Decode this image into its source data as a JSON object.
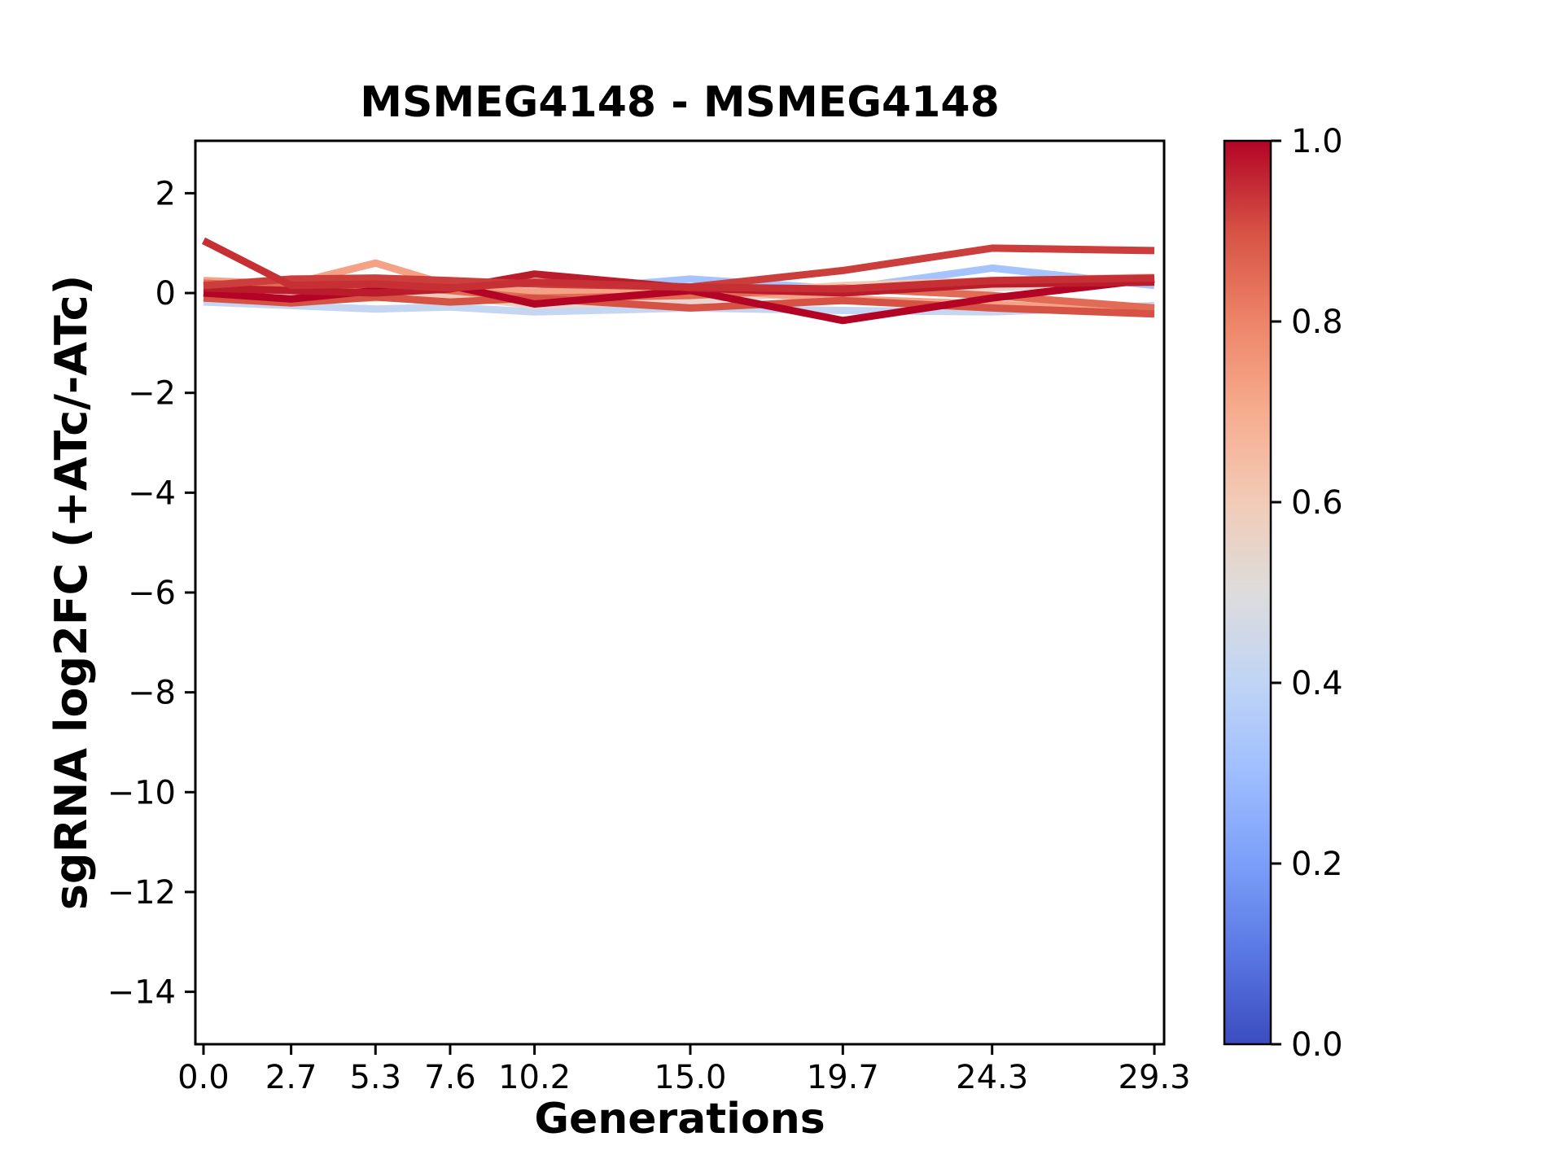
{
  "figure": {
    "background": "#ffffff"
  },
  "chart_data": {
    "type": "line",
    "title": "MSMEG4148 - MSMEG4148",
    "xlabel": "Generations",
    "ylabel": "sgRNA log2FC (+ATc/-ATc)",
    "grid": false,
    "legend": "none",
    "xlim": [
      -0.25,
      29.6
    ],
    "ylim": [
      -15.05,
      3.05
    ],
    "x": [
      0.0,
      2.7,
      5.3,
      7.6,
      10.2,
      15.0,
      19.7,
      24.3,
      29.3
    ],
    "xtick_labels": [
      "0.0",
      "2.7",
      "5.3",
      "7.6",
      "10.2",
      "15.0",
      "19.7",
      "24.3",
      "29.3"
    ],
    "ytick_values": [
      2,
      0,
      -2,
      -4,
      -6,
      -8,
      -10,
      -12,
      -14
    ],
    "ytick_labels": [
      "2",
      "0",
      "−2",
      "−4",
      "−6",
      "−8",
      "−10",
      "−12",
      "−14"
    ],
    "series": [
      {
        "color_value": 0.42,
        "color": "#c5d6f2",
        "values": [
          -0.18,
          -0.25,
          -0.32,
          -0.28,
          -0.38,
          -0.3,
          -0.35,
          -0.38,
          -0.25
        ]
      },
      {
        "color_value": 0.33,
        "color": "#a5c3fe",
        "values": [
          0.08,
          0.02,
          0.06,
          0.1,
          0.02,
          0.28,
          0.08,
          0.5,
          0.15
        ]
      },
      {
        "color_value": 0.55,
        "color": "#e8d4ca",
        "values": [
          0.0,
          -0.15,
          -0.1,
          -0.05,
          -0.25,
          -0.15,
          0.05,
          0.1,
          0.28
        ]
      },
      {
        "color_value": 0.6,
        "color": "#f2cbb7",
        "values": [
          0.08,
          -0.02,
          0.04,
          -0.12,
          -0.18,
          -0.02,
          0.15,
          0.25,
          0.32
        ]
      },
      {
        "color_value": 0.73,
        "color": "#f4a186",
        "values": [
          0.25,
          0.18,
          0.6,
          0.15,
          0.02,
          0.08,
          -0.12,
          -0.22,
          -0.38
        ]
      },
      {
        "color_value": 0.85,
        "color": "#e26b56",
        "values": [
          0.2,
          0.1,
          0.15,
          0.05,
          -0.1,
          -0.05,
          0.1,
          -0.05,
          -0.3
        ]
      },
      {
        "color_value": 0.9,
        "color": "#d65244",
        "values": [
          -0.1,
          -0.2,
          -0.08,
          -0.18,
          -0.1,
          -0.3,
          -0.15,
          -0.3,
          -0.42
        ]
      },
      {
        "color_value": 1.0,
        "color": "#b40426",
        "values": [
          0.0,
          -0.12,
          0.05,
          0.15,
          -0.22,
          0.05,
          -0.55,
          -0.1,
          0.28
        ]
      },
      {
        "color_value": 0.98,
        "color": "#ba1c2c",
        "values": [
          0.1,
          0.05,
          0.0,
          0.08,
          0.38,
          0.1,
          0.0,
          0.18,
          0.22
        ]
      },
      {
        "color_value": 0.92,
        "color": "#cb3e3b",
        "values": [
          0.15,
          0.28,
          0.3,
          0.25,
          0.18,
          0.12,
          0.45,
          0.9,
          0.85
        ]
      },
      {
        "color_value": 0.95,
        "color": "#c62f33",
        "values": [
          1.05,
          0.15,
          0.18,
          0.1,
          0.22,
          0.12,
          0.08,
          0.25,
          0.3
        ]
      }
    ],
    "colorbar": {
      "colormap": "coolwarm",
      "range": [
        0.0,
        1.0
      ],
      "ticks": [
        {
          "v": 0.0,
          "label": "0.0"
        },
        {
          "v": 0.2,
          "label": "0.2"
        },
        {
          "v": 0.4,
          "label": "0.4"
        },
        {
          "v": 0.6,
          "label": "0.6"
        },
        {
          "v": 0.8,
          "label": "0.8"
        },
        {
          "v": 1.0,
          "label": "1.0"
        }
      ],
      "stops": [
        {
          "t": 0.0,
          "color": "#3b4cc0"
        },
        {
          "t": 0.1,
          "color": "#5977e3"
        },
        {
          "t": 0.2,
          "color": "#7b9ff9"
        },
        {
          "t": 0.3,
          "color": "#9ebeff"
        },
        {
          "t": 0.4,
          "color": "#c0d4f5"
        },
        {
          "t": 0.5,
          "color": "#dddcdc"
        },
        {
          "t": 0.6,
          "color": "#f2cbb7"
        },
        {
          "t": 0.7,
          "color": "#f7ac8e"
        },
        {
          "t": 0.8,
          "color": "#ee8468"
        },
        {
          "t": 0.9,
          "color": "#d65244"
        },
        {
          "t": 1.0,
          "color": "#b40426"
        }
      ]
    }
  }
}
